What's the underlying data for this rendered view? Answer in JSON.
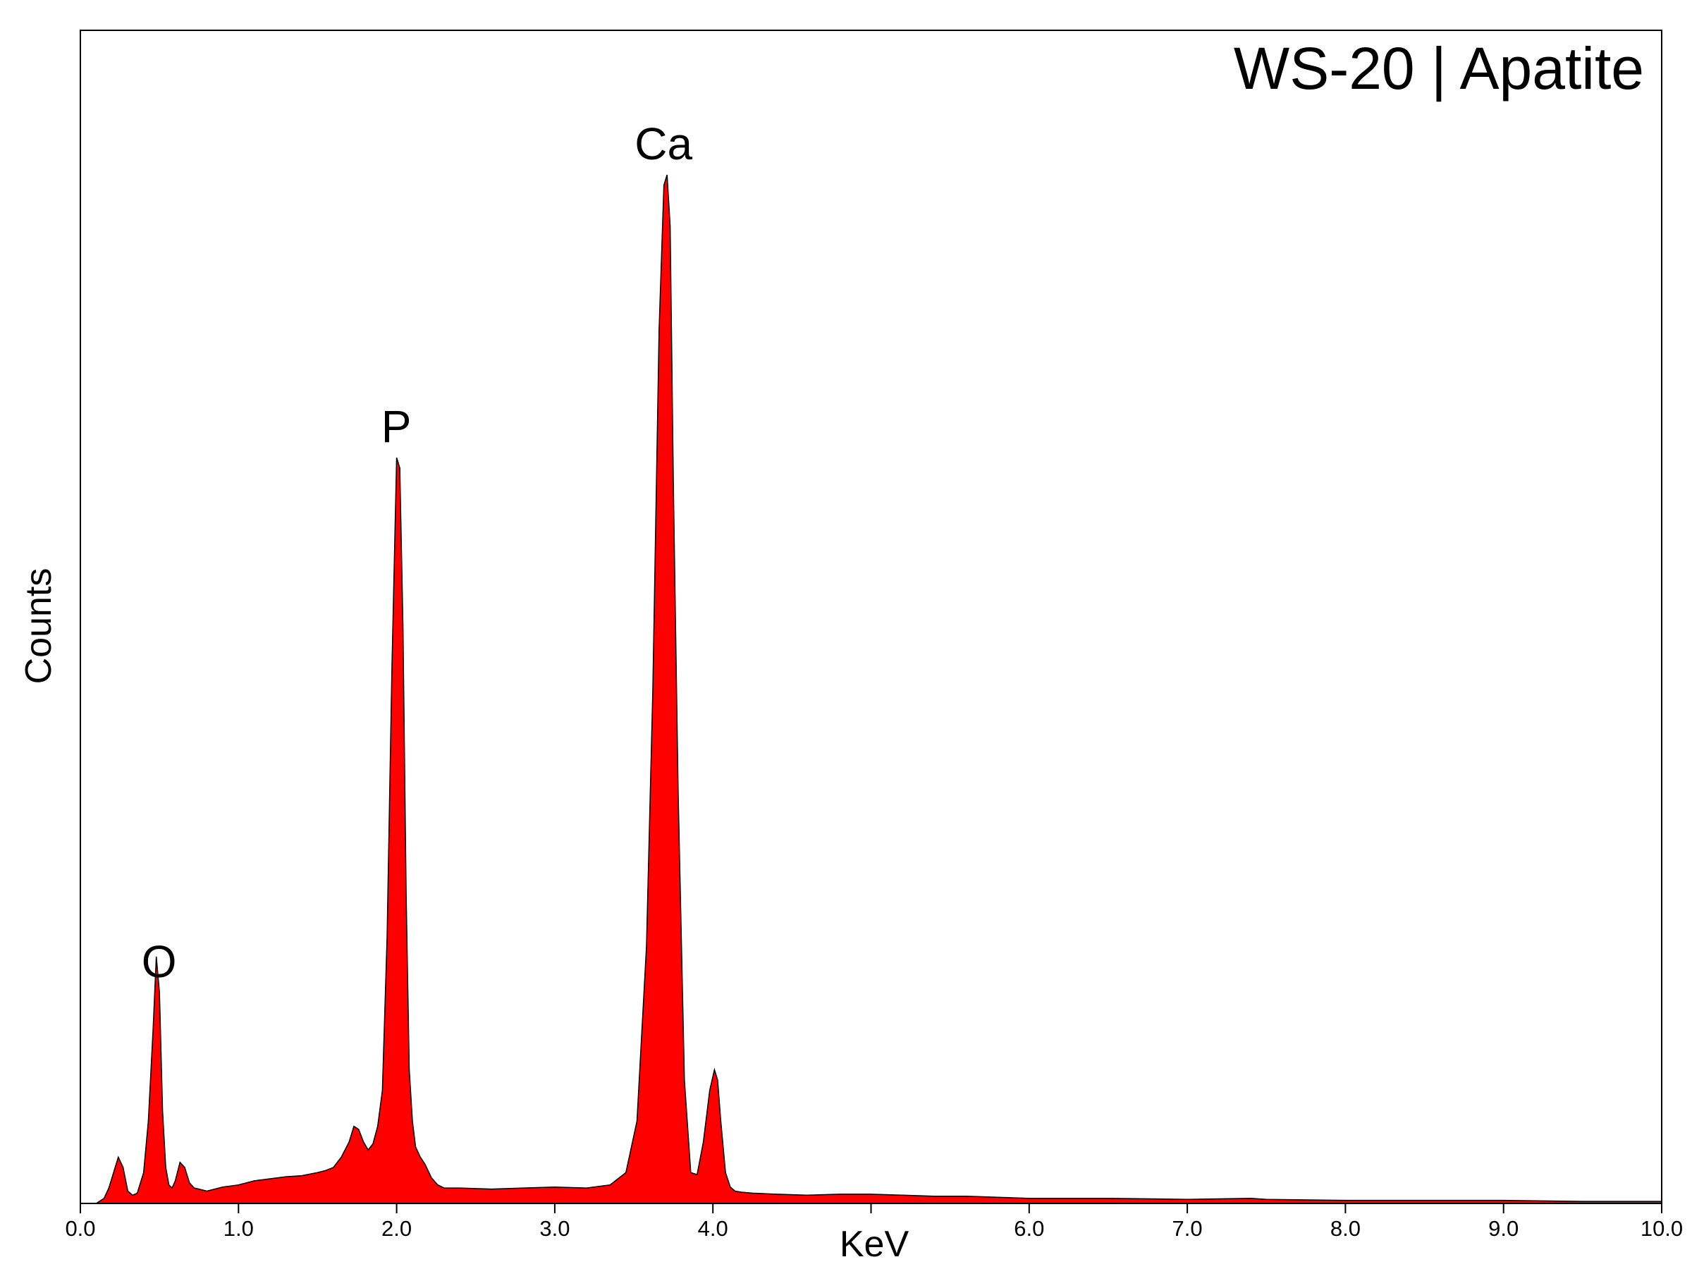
{
  "chart_data": {
    "type": "area",
    "title": "WS-20 | Apatite",
    "xlabel": "KeV",
    "ylabel": "Counts",
    "xlim": [
      0.0,
      10.0
    ],
    "ylim": [
      0,
      1000
    ],
    "x_ticks": [
      "0.0",
      "1.0",
      "2.0",
      "3.0",
      "4.0",
      "5.0",
      "6.0",
      "7.0",
      "8.0",
      "9.0",
      "10.0"
    ],
    "x_ticks_shown": [
      "0.0",
      "1.0",
      "2.0",
      "3.0",
      "4.0",
      "",
      "6.0",
      "7.0",
      "8.0",
      "9.0",
      "10.0"
    ],
    "y_ticks_shown": false,
    "grid": false,
    "fill_color": "#ff0000",
    "line_color": "#000000",
    "peak_labels": [
      {
        "label": "O",
        "x": 0.52,
        "y": 205
      },
      {
        "label": "P",
        "x": 2.02,
        "y": 725
      },
      {
        "label": "Ca",
        "x": 3.71,
        "y": 1000
      }
    ],
    "series": [
      {
        "x": [
          0.1,
          0.15,
          0.18,
          0.21,
          0.24,
          0.27,
          0.3,
          0.33,
          0.36,
          0.4,
          0.43,
          0.46,
          0.48,
          0.5,
          0.52,
          0.54,
          0.56,
          0.58,
          0.6,
          0.63,
          0.66,
          0.69,
          0.72,
          0.75,
          0.8,
          0.9,
          1.0,
          1.1,
          1.2,
          1.3,
          1.4,
          1.5,
          1.55,
          1.6,
          1.65,
          1.7,
          1.73,
          1.76,
          1.79,
          1.82,
          1.85,
          1.88,
          1.91,
          1.94,
          1.97,
          2.0,
          2.02,
          2.04,
          2.06,
          2.08,
          2.1,
          2.12,
          2.15,
          2.18,
          2.22,
          2.26,
          2.3,
          2.4,
          2.6,
          2.8,
          3.0,
          3.2,
          3.35,
          3.45,
          3.52,
          3.58,
          3.62,
          3.66,
          3.69,
          3.71,
          3.73,
          3.75,
          3.78,
          3.82,
          3.86,
          3.9,
          3.94,
          3.98,
          4.01,
          4.03,
          4.05,
          4.08,
          4.11,
          4.14,
          4.18,
          4.25,
          4.4,
          4.6,
          4.8,
          5.0,
          5.2,
          5.4,
          5.6,
          5.8,
          6.0,
          6.5,
          7.0,
          7.4,
          7.5,
          8.0,
          8.5,
          9.0,
          9.5,
          10.0
        ],
        "values": [
          0,
          5,
          15,
          30,
          45,
          35,
          12,
          8,
          10,
          30,
          80,
          170,
          240,
          205,
          90,
          35,
          18,
          15,
          22,
          40,
          35,
          20,
          15,
          14,
          12,
          16,
          18,
          22,
          24,
          26,
          27,
          30,
          32,
          35,
          45,
          60,
          75,
          72,
          60,
          52,
          58,
          75,
          110,
          260,
          520,
          725,
          715,
          560,
          300,
          130,
          80,
          55,
          45,
          38,
          25,
          18,
          15,
          15,
          14,
          15,
          16,
          15,
          18,
          30,
          80,
          250,
          500,
          850,
          990,
          1000,
          950,
          700,
          400,
          120,
          30,
          28,
          60,
          110,
          130,
          120,
          80,
          30,
          16,
          12,
          11,
          10,
          9,
          8,
          9,
          9,
          8,
          7,
          7,
          6,
          5,
          5,
          4,
          5,
          4,
          3,
          3,
          3,
          2,
          2
        ]
      }
    ]
  }
}
